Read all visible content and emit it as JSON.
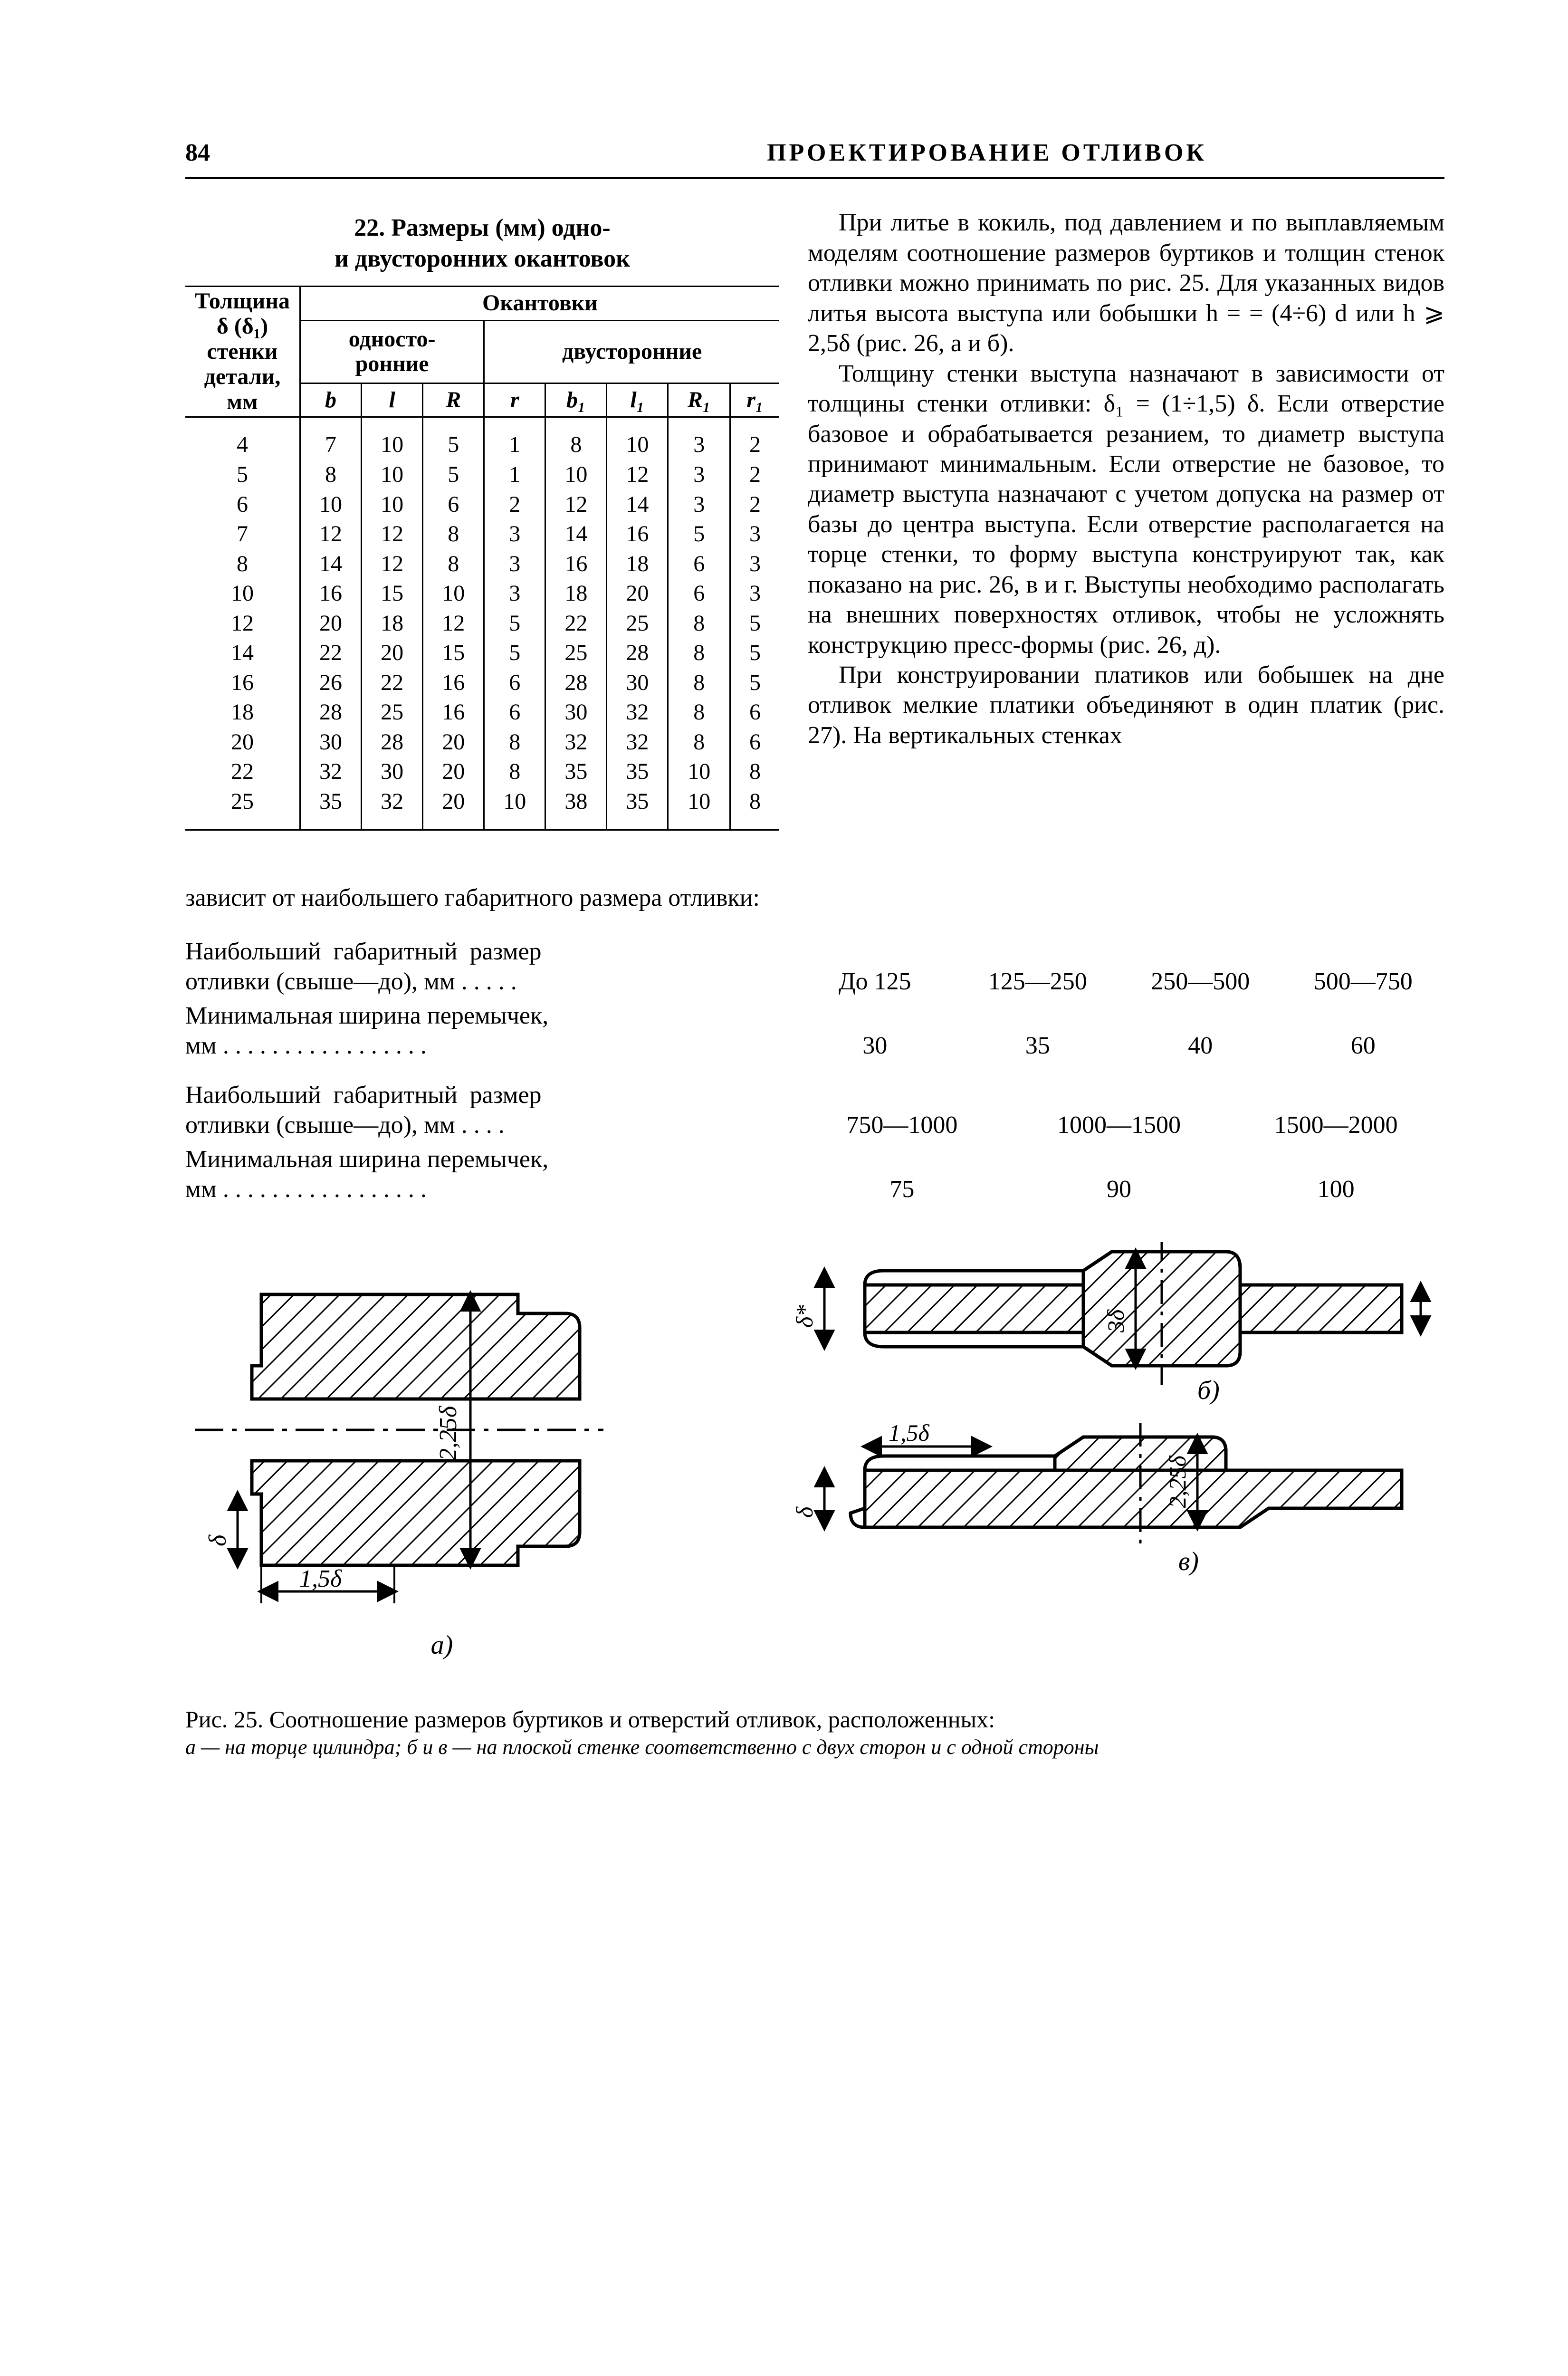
{
  "page": {
    "number": "84",
    "header": "ПРОЕКТИРОВАНИЕ  ОТЛИВОК"
  },
  "table22": {
    "caption_l1": "22. Размеры (мм) одно-",
    "caption_l2": "и двусторонних окантовок",
    "head": {
      "thickness_l1": "Толщина",
      "thickness_l2": "δ (δ₁)",
      "thickness_l3": "стенки",
      "thickness_l4": "детали,",
      "thickness_l5": "мм",
      "okantovki": "Окантовки",
      "one_side_l1": "односто-",
      "one_side_l2": "ронние",
      "two_side": "двусторонние",
      "b": "b",
      "l": "l",
      "R": "R",
      "r": "r",
      "b1": "b₁",
      "l1": "l₁",
      "R1": "R₁",
      "r1": "r₁"
    },
    "rows": [
      {
        "t": "4",
        "b": "7",
        "l": "10",
        "R": "5",
        "r": "1",
        "b1": "8",
        "l1": "10",
        "R1": "3",
        "r1": "2"
      },
      {
        "t": "5",
        "b": "8",
        "l": "10",
        "R": "5",
        "r": "1",
        "b1": "10",
        "l1": "12",
        "R1": "3",
        "r1": "2"
      },
      {
        "t": "6",
        "b": "10",
        "l": "10",
        "R": "6",
        "r": "2",
        "b1": "12",
        "l1": "14",
        "R1": "3",
        "r1": "2"
      },
      {
        "t": "7",
        "b": "12",
        "l": "12",
        "R": "8",
        "r": "3",
        "b1": "14",
        "l1": "16",
        "R1": "5",
        "r1": "3"
      },
      {
        "t": "8",
        "b": "14",
        "l": "12",
        "R": "8",
        "r": "3",
        "b1": "16",
        "l1": "18",
        "R1": "6",
        "r1": "3"
      },
      {
        "t": "10",
        "b": "16",
        "l": "15",
        "R": "10",
        "r": "3",
        "b1": "18",
        "l1": "20",
        "R1": "6",
        "r1": "3"
      },
      {
        "t": "12",
        "b": "20",
        "l": "18",
        "R": "12",
        "r": "5",
        "b1": "22",
        "l1": "25",
        "R1": "8",
        "r1": "5"
      },
      {
        "t": "14",
        "b": "22",
        "l": "20",
        "R": "15",
        "r": "5",
        "b1": "25",
        "l1": "28",
        "R1": "8",
        "r1": "5"
      },
      {
        "t": "16",
        "b": "26",
        "l": "22",
        "R": "16",
        "r": "6",
        "b1": "28",
        "l1": "30",
        "R1": "8",
        "r1": "5"
      },
      {
        "t": "18",
        "b": "28",
        "l": "25",
        "R": "16",
        "r": "6",
        "b1": "30",
        "l1": "32",
        "R1": "8",
        "r1": "6"
      },
      {
        "t": "20",
        "b": "30",
        "l": "28",
        "R": "20",
        "r": "8",
        "b1": "32",
        "l1": "32",
        "R1": "8",
        "r1": "6"
      },
      {
        "t": "22",
        "b": "32",
        "l": "30",
        "R": "20",
        "r": "8",
        "b1": "35",
        "l1": "35",
        "R1": "10",
        "r1": "8"
      },
      {
        "t": "25",
        "b": "35",
        "l": "32",
        "R": "20",
        "r": "10",
        "b1": "38",
        "l1": "35",
        "R1": "10",
        "r1": "8"
      }
    ]
  },
  "left_extra": "зависит  от  наибольшего  габаритного размера отливки:",
  "right_text": {
    "p1": "При литье в кокиль, под давлением и по выплавляемым моделям соотношение размеров буртиков и толщин стенок отливки можно принимать по рис. 25. Для указанных видов литья высота выступа или бобышки h = = (4÷6) d  или  h ⩾ 2,5δ (рис. 26, а и б).",
    "p2": "Толщину стенки выступа назначают в зависимости от толщины стенки отливки: δ₁ = (1÷1,5) δ. Если отверстие базовое и обрабатывается резанием, то диаметр выступа принимают минимальным. Если отверстие не базовое, то диаметр выступа назначают с учетом допуска на размер от базы до центра выступа. Если отверстие располагается на торце стенки, то форму выступа конструируют так, как показано на рис. 26, в и г. Выступы необходимо располагать на внешних поверхностях отливок, чтобы не усложнять конструкцию пресс-формы (рис. 26, д).",
    "p3": "При конструировании платиков или бобышек на дне отливок мелкие платики объединяют в один платик (рис. 27). На вертикальных стенках"
  },
  "mid_table": {
    "row1_label": "Наибольший  габаритный  размер\nотливки (свыше—до), мм . . . . .",
    "row1_vals": [
      "До 125",
      "125—250",
      "250—500",
      "500—750"
    ],
    "row2_label": "Минимальная ширина перемычек,\nмм . . . . . . . . . . . . . . . . .",
    "row2_vals": [
      "30",
      "35",
      "40",
      "60"
    ],
    "row3_label": "Наибольший  габаритный  размер\nотливки (свыше—до), мм . . . .",
    "row3_vals": [
      "750—1000",
      "1000—1500",
      "1500—2000"
    ],
    "row4_label": "Минимальная ширина перемычек,\nмм . . . . . . . . . . . . . . . . .",
    "row4_vals": [
      "75",
      "90",
      "100"
    ]
  },
  "figures": {
    "a": {
      "label": "а)",
      "dim_225d": "2,25δ",
      "dim_15d": "1,5δ",
      "dim_d": "δ"
    },
    "bv": {
      "label_b": "б)",
      "label_v": "в)",
      "dim_3d": "3δ",
      "dim_d": "δ",
      "dim_225d": "2,25δ",
      "dim_15d": "1,5δ",
      "dim_dstar": "δ*"
    },
    "caption_main": "Рис. 25. Соотношение размеров буртиков и отверстий отливок, расположенных:",
    "caption_sub": "а — на торце цилиндра; б и в — на плоской стенке соответственно с двух сторон и с одной стороны"
  },
  "style": {
    "text_color": "#000000",
    "bg_color": "#ffffff",
    "stroke_color": "#000000",
    "hatch_color": "#000000"
  }
}
